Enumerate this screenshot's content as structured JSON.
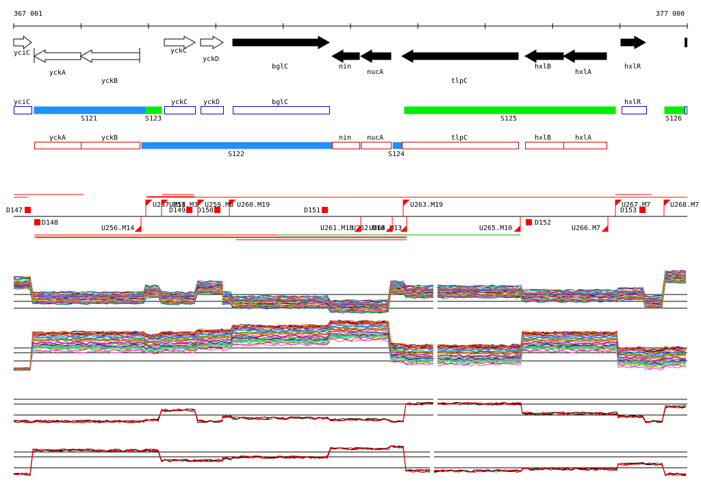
{
  "ruler": {
    "start_label": "367 001",
    "end_label": "377 000"
  },
  "colors": {
    "forward_gene_fill": "#ffffff",
    "reverse_gene_fill": "#000000",
    "segment_blue": "#1e90ff",
    "segment_green": "#00ee00",
    "strand_plus_box": "#0000cc",
    "strand_minus_box": "#cc0000",
    "marker_red": "#ff0000"
  },
  "genes": [
    {
      "name": "yciC",
      "strand": "+"
    },
    {
      "name": "yckA",
      "strand": "-"
    },
    {
      "name": "yckB",
      "strand": "-"
    },
    {
      "name": "yckC",
      "strand": "+"
    },
    {
      "name": "yckD",
      "strand": "+"
    },
    {
      "name": "bglC",
      "strand": "+"
    },
    {
      "name": "nin",
      "strand": "-"
    },
    {
      "name": "nucA",
      "strand": "-"
    },
    {
      "name": "tlpC",
      "strand": "-"
    },
    {
      "name": "hxlB",
      "strand": "-"
    },
    {
      "name": "hxlA",
      "strand": "-"
    },
    {
      "name": "hxlR",
      "strand": "+"
    }
  ],
  "plus_track": {
    "boxes": [
      "yciC",
      "yckC",
      "yckD",
      "bglC",
      "hxlR"
    ],
    "segments": [
      "S121",
      "S123",
      "S125",
      "S126"
    ]
  },
  "minus_track": {
    "boxes": [
      "yckA",
      "yckB",
      "nin",
      "nucA",
      "tlpC",
      "hxlB",
      "hxlA"
    ],
    "segments": [
      "S122",
      "S124"
    ]
  },
  "upshifts_plus": [
    "U257.M11",
    "U258.M3",
    "U259.M8",
    "U260.M19",
    "U263.M19",
    "U267.M7",
    "U268.M7"
  ],
  "upshifts_minus": [
    "U256.M14",
    "U261.M18",
    "U262.M18",
    "U264.M13",
    "U265.M10",
    "U266.M7"
  ],
  "downshifts": [
    "D147",
    "D148",
    "D149",
    "D150",
    "D151",
    "D152",
    "D153"
  ]
}
